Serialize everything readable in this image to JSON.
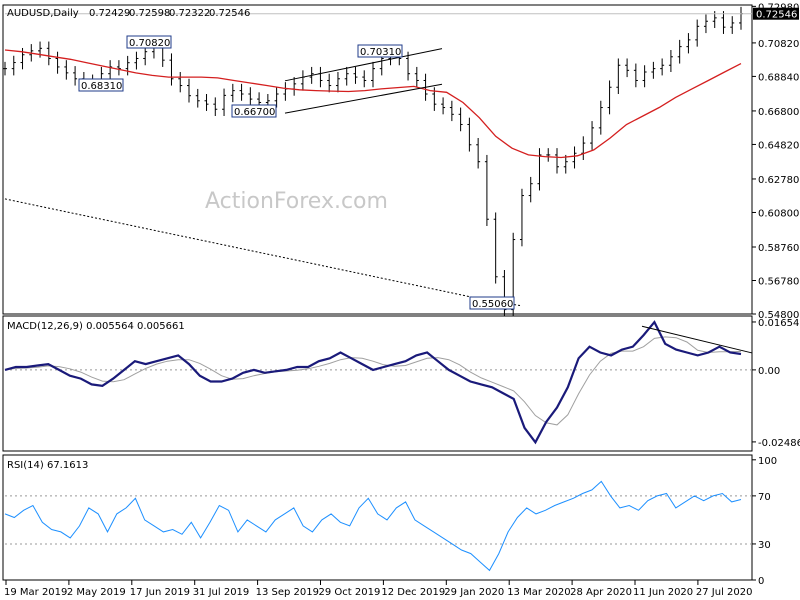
{
  "chart_data": {
    "type": "line",
    "title": "AUDUSD,Daily",
    "ohlc": [
      "0.72429",
      "0.72598",
      "0.72322",
      "0.72546"
    ],
    "watermark": "ActionForex.com",
    "x_labels": [
      "19 Mar 2019",
      "2 May 2019",
      "17 Jun 2019",
      "31 Jul 2019",
      "13 Sep 2019",
      "29 Oct 2019",
      "12 Dec 2019",
      "29 Jan 2020",
      "13 Mar 2020",
      "28 Apr 2020",
      "11 Jun 2020",
      "27 Jul 2020"
    ],
    "price_axis": {
      "range": [
        0.548,
        0.7306
      ],
      "ticks": [
        "0.72980",
        "0.70820",
        "0.68840",
        "0.66800",
        "0.64820",
        "0.62780",
        "0.60800",
        "0.58760",
        "0.56780",
        "0.54800"
      ],
      "current": "0.72546"
    },
    "annotations": [
      {
        "label": "0.70820",
        "value": 0.7082
      },
      {
        "label": "0.68310",
        "value": 0.6831
      },
      {
        "label": "0.66700",
        "value": 0.667
      },
      {
        "label": "0.70310",
        "value": 0.7031
      },
      {
        "label": "0.55060",
        "value": 0.5506
      }
    ],
    "price_series": [
      0.693,
      0.6966,
      0.7012,
      0.7035,
      0.705,
      0.699,
      0.694,
      0.6905,
      0.687,
      0.6855,
      0.6836,
      0.69,
      0.694,
      0.693,
      0.6965,
      0.699,
      0.703,
      0.7082,
      0.698,
      0.687,
      0.683,
      0.677,
      0.674,
      0.672,
      0.669,
      0.6772,
      0.68,
      0.678,
      0.675,
      0.673,
      0.674,
      0.678,
      0.681,
      0.684,
      0.688,
      0.69,
      0.686,
      0.683,
      0.687,
      0.69,
      0.688,
      0.686,
      0.693,
      0.699,
      0.7031,
      0.699,
      0.69,
      0.686,
      0.678,
      0.672,
      0.67,
      0.666,
      0.66,
      0.648,
      0.638,
      0.604,
      0.57,
      0.5506,
      0.592,
      0.618,
      0.625,
      0.642,
      0.642,
      0.635,
      0.638,
      0.643,
      0.649,
      0.658,
      0.67,
      0.682,
      0.695,
      0.692,
      0.686,
      0.691,
      0.693,
      0.695,
      0.7,
      0.706,
      0.71,
      0.718,
      0.721,
      0.723,
      0.7175,
      0.72,
      0.7255
    ],
    "moving_averages": [
      {
        "values": [
          0.704,
          0.703,
          0.7015,
          0.7,
          0.6985,
          0.6965,
          0.6945,
          0.6925,
          0.6905,
          0.689,
          0.688,
          0.688,
          0.688,
          0.6875,
          0.686,
          0.6845,
          0.683,
          0.6815,
          0.6805,
          0.68,
          0.6797,
          0.6795,
          0.68,
          0.681,
          0.6818,
          0.6825,
          0.68,
          0.679,
          0.673,
          0.664,
          0.653,
          0.646,
          0.642,
          0.641,
          0.6405,
          0.6415,
          0.645,
          0.652,
          0.66,
          0.665,
          0.67,
          0.676,
          0.681,
          0.686,
          0.691,
          0.696
        ]
      },
      {
        "values": [
          0.616,
          0.612,
          0.608,
          0.604,
          0.6,
          0.596,
          0.592,
          0.588,
          0.584,
          0.58,
          0.576,
          0.572,
          0.568,
          0.564,
          0.56,
          0.556,
          0.553
        ]
      }
    ],
    "channels": [
      {
        "from": 0.6858,
        "to": 0.7048
      },
      {
        "from": 0.6667,
        "to": 0.6838
      }
    ],
    "trendlines": [
      {
        "from": 0.01505,
        "to": 0.00585
      }
    ],
    "macd": {
      "label": "MACD(12,26,9) 0.005564 0.005661",
      "range": [
        -0.028,
        0.0186
      ],
      "ticks": [
        "0.01654",
        "0.00",
        "-0.02486"
      ],
      "main": [
        0.0,
        0.001,
        0.001,
        0.0015,
        0.002,
        0.0,
        -0.002,
        -0.003,
        -0.005,
        -0.0055,
        -0.003,
        0.0,
        0.003,
        0.002,
        0.003,
        0.004,
        0.005,
        0.002,
        -0.002,
        -0.004,
        -0.004,
        -0.003,
        -0.001,
        0.0,
        -0.001,
        -0.0005,
        0.0,
        0.001,
        0.001,
        0.003,
        0.004,
        0.006,
        0.004,
        0.002,
        0.0,
        0.001,
        0.002,
        0.003,
        0.005,
        0.006,
        0.003,
        0.0,
        -0.002,
        -0.004,
        -0.005,
        -0.006,
        -0.008,
        -0.01,
        -0.02,
        -0.025,
        -0.018,
        -0.013,
        -0.006,
        0.004,
        0.008,
        0.006,
        0.005,
        0.007,
        0.008,
        0.012,
        0.0165,
        0.009,
        0.007,
        0.006,
        0.005,
        0.006,
        0.008,
        0.006,
        0.0055
      ]
    },
    "rsi": {
      "label": "RSI(14) 67.1613",
      "range": [
        0,
        104
      ],
      "ticks": [
        "100",
        "70",
        "30",
        "0"
      ],
      "levels": [
        70,
        30
      ],
      "values": [
        55,
        52,
        58,
        62,
        48,
        42,
        40,
        35,
        45,
        60,
        55,
        40,
        55,
        60,
        68,
        50,
        45,
        40,
        42,
        38,
        48,
        35,
        48,
        62,
        58,
        40,
        50,
        45,
        40,
        50,
        55,
        60,
        45,
        40,
        50,
        55,
        48,
        45,
        60,
        68,
        55,
        50,
        60,
        65,
        50,
        45,
        40,
        35,
        30,
        25,
        22,
        15,
        8,
        22,
        40,
        52,
        60,
        55,
        58,
        62,
        65,
        68,
        72,
        75,
        82,
        70,
        60,
        62,
        58,
        66,
        70,
        72,
        60,
        65,
        70,
        66,
        70,
        72,
        65,
        67
      ]
    }
  }
}
